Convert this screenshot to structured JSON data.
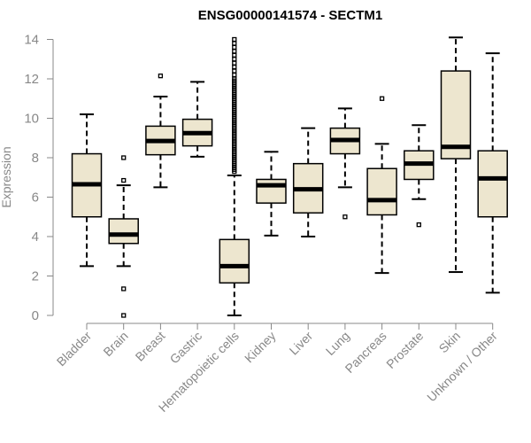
{
  "chart_data": {
    "type": "boxplot",
    "title": "ENSG00000141574 - SECTM1",
    "xlabel": "",
    "ylabel": "Expression",
    "ylim": [
      0,
      14
    ],
    "yticks": [
      0,
      2,
      4,
      6,
      8,
      10,
      12,
      14
    ],
    "grid": false,
    "colors": {
      "box_fill": "#ede6cf",
      "box_stroke": "#000000",
      "median": "#000000",
      "axis": "#888888"
    },
    "categories": [
      "Bladder",
      "Brain",
      "Breast",
      "Gastric",
      "Hematopoietic cells",
      "Kidney",
      "Liver",
      "Lung",
      "Pancreas",
      "Prostate",
      "Skin",
      "Unknown / Other"
    ],
    "series": [
      {
        "name": "Bladder",
        "whisker_low": 2.5,
        "q1": 5.0,
        "median": 6.65,
        "q3": 8.2,
        "whisker_high": 10.2,
        "outliers": []
      },
      {
        "name": "Brain",
        "whisker_low": 2.5,
        "q1": 3.65,
        "median": 4.1,
        "q3": 4.9,
        "whisker_high": 6.6,
        "outliers": [
          0.0,
          1.35,
          6.85,
          8.0
        ]
      },
      {
        "name": "Breast",
        "whisker_low": 6.5,
        "q1": 8.15,
        "median": 8.85,
        "q3": 9.6,
        "whisker_high": 11.1,
        "outliers": [
          12.15
        ]
      },
      {
        "name": "Gastric",
        "whisker_low": 8.05,
        "q1": 8.6,
        "median": 9.25,
        "q3": 9.95,
        "whisker_high": 11.85,
        "outliers": []
      },
      {
        "name": "Hematopoietic cells",
        "whisker_low": 0.0,
        "q1": 1.65,
        "median": 2.5,
        "q3": 3.85,
        "whisker_high": 7.1,
        "outliers": [
          7.3,
          7.4,
          7.5,
          7.6,
          7.7,
          7.8,
          7.9,
          8.0,
          8.1,
          8.2,
          8.3,
          8.4,
          8.5,
          8.6,
          8.7,
          8.8,
          8.9,
          9.0,
          9.1,
          9.2,
          9.3,
          9.4,
          9.5,
          9.6,
          9.7,
          9.8,
          9.9,
          10.0,
          10.1,
          10.2,
          10.3,
          10.4,
          10.5,
          10.6,
          10.7,
          10.8,
          10.9,
          11.0,
          11.1,
          11.2,
          11.3,
          11.4,
          11.5,
          11.6,
          11.7,
          11.8,
          11.9,
          12.0,
          12.2,
          12.4,
          12.6,
          12.8,
          13.0,
          13.2,
          13.4,
          13.6,
          13.8,
          14.0
        ]
      },
      {
        "name": "Kidney",
        "whisker_low": 4.05,
        "q1": 5.7,
        "median": 6.6,
        "q3": 6.9,
        "whisker_high": 8.3,
        "outliers": []
      },
      {
        "name": "Liver",
        "whisker_low": 4.0,
        "q1": 5.2,
        "median": 6.4,
        "q3": 7.7,
        "whisker_high": 9.5,
        "outliers": []
      },
      {
        "name": "Lung",
        "whisker_low": 6.5,
        "q1": 8.2,
        "median": 8.9,
        "q3": 9.5,
        "whisker_high": 10.5,
        "outliers": [
          5.0
        ]
      },
      {
        "name": "Pancreas",
        "whisker_low": 2.15,
        "q1": 5.1,
        "median": 5.85,
        "q3": 7.45,
        "whisker_high": 8.7,
        "outliers": [
          11.0
        ]
      },
      {
        "name": "Prostate",
        "whisker_low": 5.9,
        "q1": 6.9,
        "median": 7.7,
        "q3": 8.35,
        "whisker_high": 9.65,
        "outliers": [
          4.6
        ]
      },
      {
        "name": "Skin",
        "whisker_low": 2.2,
        "q1": 7.95,
        "median": 8.55,
        "q3": 12.4,
        "whisker_high": 14.1,
        "outliers": []
      },
      {
        "name": "Unknown / Other",
        "whisker_low": 1.15,
        "q1": 5.0,
        "median": 6.95,
        "q3": 8.35,
        "whisker_high": 13.3,
        "outliers": []
      }
    ]
  }
}
